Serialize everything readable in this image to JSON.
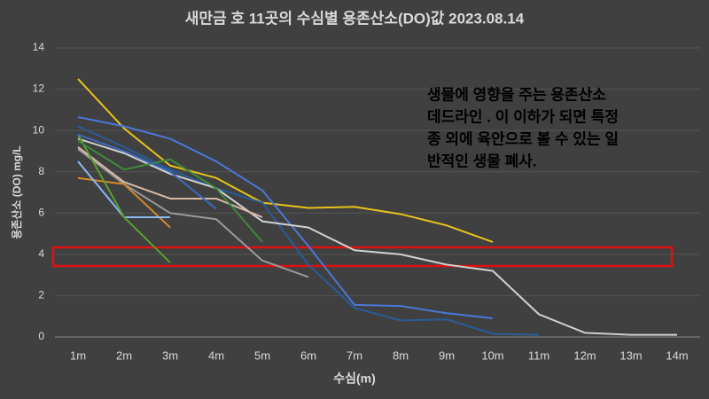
{
  "chart_data": {
    "type": "line",
    "title": "새만금 호 11곳의 수심별 용존산소(DO)값 2023.08.14",
    "x_label": "수심(m)",
    "y_label": "용존산소 (DO) mg/L",
    "annotation": [
      "생물에 영향을 주는 용존산소",
      "데드라인 . 이 이하가 되면 특정",
      "종 외에 육안으로 볼 수 있는 일",
      "반적인  생물 폐사."
    ],
    "categories": [
      "1m",
      "2m",
      "3m",
      "4m",
      "5m",
      "6m",
      "7m",
      "8m",
      "9m",
      "10m",
      "11m",
      "12m",
      "13m",
      "14m"
    ],
    "ylim": [
      0,
      14
    ],
    "yticks": [
      0,
      2,
      4,
      6,
      8,
      10,
      12,
      14
    ],
    "grid": true,
    "series": [
      {
        "color": "#e8c21a",
        "values": [
          12.5,
          10.1,
          8.3,
          7.7,
          6.5,
          6.25,
          6.3,
          5.95,
          5.4,
          4.6,
          null,
          null,
          null,
          null
        ]
      },
      {
        "color": "#4a78d8",
        "values": [
          10.65,
          10.2,
          9.6,
          8.5,
          7.1,
          4.4,
          1.55,
          1.5,
          1.15,
          0.9,
          null,
          null,
          null,
          null
        ]
      },
      {
        "color": "#2a5c98",
        "values": [
          10.2,
          9.2,
          8.1,
          7.2,
          6.5,
          3.5,
          1.4,
          0.8,
          0.85,
          0.15,
          0.1,
          null,
          null,
          null
        ]
      },
      {
        "color": "#9a9a9a",
        "values": [
          9.1,
          7.4,
          6.0,
          5.7,
          3.7,
          2.9,
          null,
          null,
          null,
          null,
          null,
          null,
          null,
          null
        ]
      },
      {
        "color": "#d0d0d0",
        "values": [
          9.6,
          8.9,
          7.9,
          7.2,
          5.6,
          5.3,
          4.2,
          4.0,
          3.5,
          3.2,
          1.1,
          0.2,
          0.1,
          0.1
        ]
      },
      {
        "color": "#d9b8a8",
        "values": [
          9.2,
          7.5,
          6.7,
          6.7,
          5.8,
          null,
          null,
          null,
          null,
          null,
          null,
          null,
          null,
          null
        ]
      },
      {
        "color": "#d48a2a",
        "values": [
          7.7,
          7.4,
          5.3,
          null,
          null,
          null,
          null,
          null,
          null,
          null,
          null,
          null,
          null,
          null
        ]
      },
      {
        "color": "#8ab8f0",
        "values": [
          8.5,
          5.8,
          5.8,
          null,
          null,
          null,
          null,
          null,
          null,
          null,
          null,
          null,
          null,
          null
        ]
      },
      {
        "color": "#5aa02a",
        "values": [
          9.8,
          5.8,
          3.6,
          null,
          null,
          null,
          null,
          null,
          null,
          null,
          null,
          null,
          null,
          null
        ]
      },
      {
        "color": "#3f8a3a",
        "values": [
          9.5,
          8.1,
          8.6,
          7.2,
          4.6,
          null,
          null,
          null,
          null,
          null,
          null,
          null,
          null,
          null
        ]
      },
      {
        "color": "#3a6ac0",
        "values": [
          9.8,
          9.0,
          8.0,
          6.2,
          null,
          null,
          null,
          null,
          null,
          null,
          null,
          null,
          null,
          null
        ]
      }
    ]
  }
}
